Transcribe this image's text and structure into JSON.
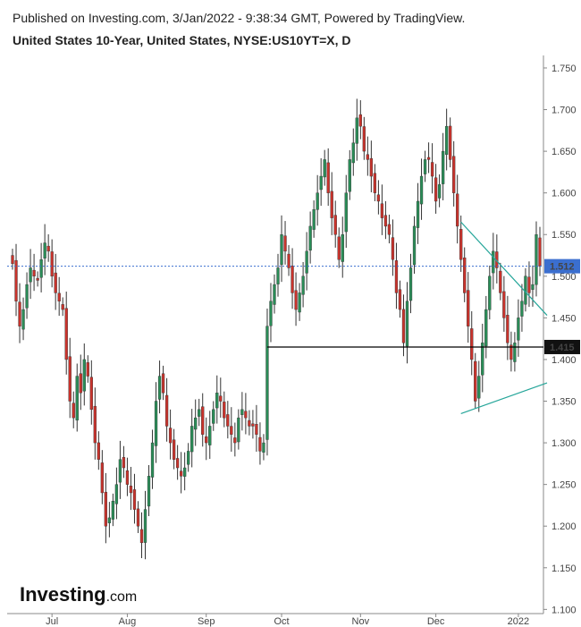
{
  "header": {
    "published": "Published on Investing.com, 3/Jan/2022 - 9:38:34 GMT, Powered by TradingView.",
    "title": "United States 10-Year, United States, NYSE:US10YT=X, D"
  },
  "watermark": {
    "brand": "Investing",
    "suffix": ".com"
  },
  "colors": {
    "up": "#2a8c57",
    "down": "#c8332c",
    "wick": "#333333",
    "trendline": "#26a69a",
    "current_price_bg": "#3b6fcf",
    "support_bg": "#111111"
  },
  "chart_data": {
    "type": "candlestick",
    "title": "United States 10-Year, United States, NYSE:US10YT=X, D",
    "ylim": [
      1.095,
      1.765
    ],
    "y_ticks": [
      "1.100",
      "1.150",
      "1.200",
      "1.250",
      "1.300",
      "1.350",
      "1.400",
      "1.450",
      "1.500",
      "1.550",
      "1.600",
      "1.650",
      "1.700",
      "1.750"
    ],
    "x_ticks": [
      {
        "label": "Jul",
        "index": 11
      },
      {
        "label": "Aug",
        "index": 32
      },
      {
        "label": "Sep",
        "index": 54
      },
      {
        "label": "Oct",
        "index": 75
      },
      {
        "label": "Nov",
        "index": 97
      },
      {
        "label": "Dec",
        "index": 118
      },
      {
        "label": "2022",
        "index": 141
      }
    ],
    "closes": [
      1.515,
      1.47,
      1.44,
      1.46,
      1.49,
      1.51,
      1.5,
      1.495,
      1.52,
      1.54,
      1.53,
      1.5,
      1.48,
      1.47,
      1.46,
      1.4,
      1.35,
      1.33,
      1.38,
      1.36,
      1.4,
      1.38,
      1.34,
      1.3,
      1.28,
      1.24,
      1.2,
      1.21,
      1.23,
      1.25,
      1.28,
      1.27,
      1.25,
      1.24,
      1.22,
      1.2,
      1.18,
      1.22,
      1.26,
      1.3,
      1.35,
      1.38,
      1.36,
      1.32,
      1.3,
      1.28,
      1.27,
      1.26,
      1.27,
      1.29,
      1.32,
      1.33,
      1.34,
      1.31,
      1.3,
      1.32,
      1.34,
      1.36,
      1.35,
      1.33,
      1.32,
      1.31,
      1.3,
      1.33,
      1.34,
      1.33,
      1.32,
      1.32,
      1.31,
      1.29,
      1.3,
      1.44,
      1.47,
      1.49,
      1.51,
      1.55,
      1.53,
      1.51,
      1.48,
      1.46,
      1.48,
      1.5,
      1.53,
      1.56,
      1.58,
      1.6,
      1.62,
      1.64,
      1.6,
      1.57,
      1.55,
      1.52,
      1.55,
      1.6,
      1.64,
      1.66,
      1.69,
      1.68,
      1.65,
      1.64,
      1.62,
      1.6,
      1.59,
      1.57,
      1.56,
      1.55,
      1.52,
      1.48,
      1.46,
      1.42,
      1.47,
      1.51,
      1.56,
      1.59,
      1.62,
      1.64,
      1.64,
      1.62,
      1.59,
      1.61,
      1.65,
      1.68,
      1.64,
      1.6,
      1.56,
      1.52,
      1.48,
      1.44,
      1.4,
      1.35,
      1.38,
      1.42,
      1.46,
      1.5,
      1.53,
      1.51,
      1.48,
      1.45,
      1.42,
      1.4,
      1.42,
      1.45,
      1.47,
      1.5,
      1.48,
      1.49,
      1.55,
      1.512
    ],
    "series": [
      {
        "name": "US10YT=X",
        "type": "candlestick"
      }
    ],
    "current_price": {
      "label": "1.512",
      "value": 1.512,
      "style": "dotted-blue"
    },
    "support_level": {
      "label": "1.415",
      "value": 1.415,
      "style": "solid-black",
      "from_index": 71,
      "to_index": 149
    },
    "trendlines": [
      {
        "name": "upper",
        "from": {
          "index": 125,
          "value": 1.565
        },
        "to": {
          "index": 149,
          "value": 1.453
        }
      },
      {
        "name": "lower",
        "from": {
          "index": 125,
          "value": 1.335
        },
        "to": {
          "index": 149,
          "value": 1.372
        }
      }
    ]
  }
}
